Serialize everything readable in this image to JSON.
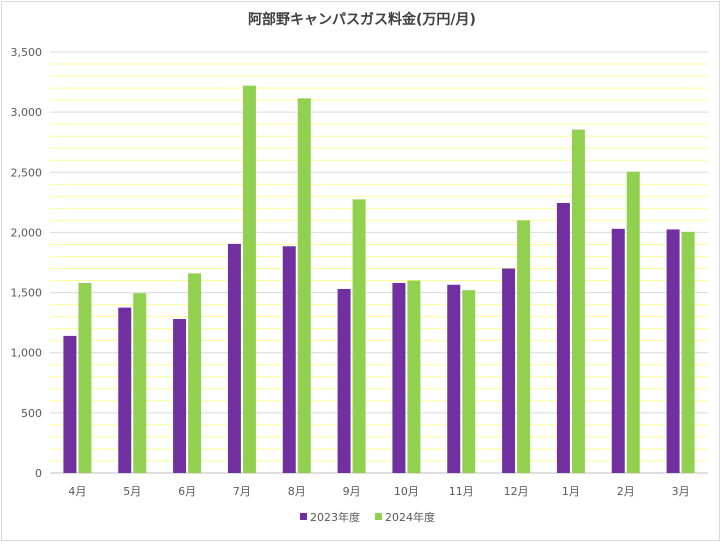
{
  "chart_data": {
    "type": "bar",
    "title": "阿部野キャンパスガス料金(万円/月)",
    "categories": [
      "4月",
      "5月",
      "6月",
      "7月",
      "8月",
      "9月",
      "10月",
      "11月",
      "12月",
      "1月",
      "2月",
      "3月"
    ],
    "series": [
      {
        "name": "2023年度",
        "color": "#7030a0",
        "values": [
          1140,
          1375,
          1280,
          1905,
          1885,
          1530,
          1580,
          1565,
          1700,
          2245,
          2030,
          2025
        ]
      },
      {
        "name": "2024年度",
        "color": "#92d050",
        "values": [
          1580,
          1495,
          1660,
          3220,
          3115,
          2275,
          1600,
          1520,
          2100,
          2855,
          2505,
          2005
        ]
      }
    ],
    "ylim": [
      0,
      3500
    ],
    "y_major_ticks": [
      0,
      500,
      1000,
      1500,
      2000,
      2500,
      3000,
      3500
    ],
    "y_tick_labels": [
      "0",
      "500",
      "1,000",
      "1,500",
      "2,000",
      "2,500",
      "3,000",
      "3,500"
    ],
    "gridlines": {
      "major_color": "#d9d9d9",
      "minor_color": "#ffff99",
      "minor_step": 100
    },
    "legend_position": "bottom"
  }
}
